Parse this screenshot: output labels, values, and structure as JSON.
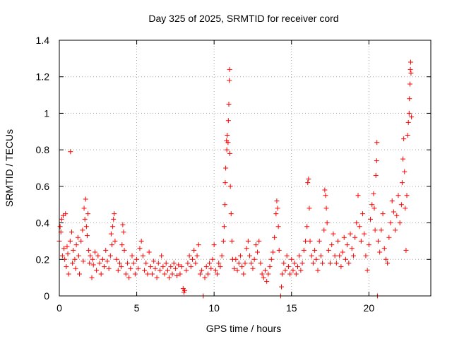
{
  "chart_data": {
    "type": "scatter",
    "title": "Day 325 of 2025, SRMTID for receiver cord",
    "xlabel": "GPS time / hours",
    "ylabel": "SRMTID / TECUs",
    "xlim": [
      0,
      24
    ],
    "ylim": [
      0,
      1.4
    ],
    "xticks": [
      0,
      5,
      10,
      15,
      20
    ],
    "yticks": [
      0,
      0.2,
      0.4,
      0.6,
      0.8,
      1,
      1.2,
      1.4
    ],
    "xtick_labels": [
      "0",
      "5",
      "10",
      "15",
      "20"
    ],
    "ytick_labels": [
      "0",
      "0.2",
      "0.4",
      "0.6",
      "0.8",
      "1",
      "1.2",
      "1.4"
    ],
    "grid": true,
    "marker": "+",
    "color": "#ff0000",
    "series": [
      {
        "name": "SRMTID",
        "points": [
          [
            0.0,
            0.3
          ],
          [
            0.05,
            0.38
          ],
          [
            0.1,
            0.35
          ],
          [
            0.15,
            0.42
          ],
          [
            0.2,
            0.22
          ],
          [
            0.25,
            0.44
          ],
          [
            0.3,
            0.26
          ],
          [
            0.35,
            0.2
          ],
          [
            0.4,
            0.45
          ],
          [
            0.45,
            0.16
          ],
          [
            0.5,
            0.27
          ],
          [
            0.55,
            0.23
          ],
          [
            0.6,
            0.12
          ],
          [
            0.7,
            0.3
          ],
          [
            0.72,
            0.79
          ],
          [
            0.8,
            0.35
          ],
          [
            0.85,
            0.18
          ],
          [
            0.9,
            0.25
          ],
          [
            1.0,
            0.2
          ],
          [
            1.05,
            0.15
          ],
          [
            1.1,
            0.28
          ],
          [
            1.2,
            0.32
          ],
          [
            1.25,
            0.22
          ],
          [
            1.3,
            0.12
          ],
          [
            1.4,
            0.3
          ],
          [
            1.5,
            0.36
          ],
          [
            1.55,
            0.19
          ],
          [
            1.6,
            0.48
          ],
          [
            1.65,
            0.42
          ],
          [
            1.7,
            0.53
          ],
          [
            1.75,
            0.38
          ],
          [
            1.8,
            0.33
          ],
          [
            1.85,
            0.45
          ],
          [
            1.9,
            0.25
          ],
          [
            1.95,
            0.18
          ],
          [
            2.0,
            0.22
          ],
          [
            2.1,
            0.1
          ],
          [
            2.15,
            0.2
          ],
          [
            2.2,
            0.17
          ],
          [
            2.3,
            0.24
          ],
          [
            2.4,
            0.14
          ],
          [
            2.5,
            0.22
          ],
          [
            2.6,
            0.18
          ],
          [
            2.7,
            0.12
          ],
          [
            2.8,
            0.2
          ],
          [
            2.9,
            0.16
          ],
          [
            3.0,
            0.25
          ],
          [
            3.1,
            0.19
          ],
          [
            3.2,
            0.15
          ],
          [
            3.3,
            0.22
          ],
          [
            3.35,
            0.34
          ],
          [
            3.4,
            0.28
          ],
          [
            3.45,
            0.38
          ],
          [
            3.5,
            0.42
          ],
          [
            3.55,
            0.45
          ],
          [
            3.6,
            0.3
          ],
          [
            3.7,
            0.2
          ],
          [
            3.8,
            0.14
          ],
          [
            3.9,
            0.18
          ],
          [
            4.0,
            0.16
          ],
          [
            4.05,
            0.28
          ],
          [
            4.1,
            0.39
          ],
          [
            4.15,
            0.35
          ],
          [
            4.2,
            0.25
          ],
          [
            4.3,
            0.12
          ],
          [
            4.4,
            0.18
          ],
          [
            4.5,
            0.1
          ],
          [
            4.6,
            0.15
          ],
          [
            4.7,
            0.22
          ],
          [
            4.8,
            0.18
          ],
          [
            4.9,
            0.12
          ],
          [
            5.0,
            0.2
          ],
          [
            5.1,
            0.15
          ],
          [
            5.2,
            0.26
          ],
          [
            5.3,
            0.3
          ],
          [
            5.4,
            0.22
          ],
          [
            5.5,
            0.14
          ],
          [
            5.6,
            0.18
          ],
          [
            5.7,
            0.12
          ],
          [
            5.8,
            0.24
          ],
          [
            5.9,
            0.16
          ],
          [
            6.0,
            0.12
          ],
          [
            6.1,
            0.19
          ],
          [
            6.2,
            0.15
          ],
          [
            6.3,
            0.1
          ],
          [
            6.4,
            0.18
          ],
          [
            6.5,
            0.14
          ],
          [
            6.6,
            0.22
          ],
          [
            6.7,
            0.16
          ],
          [
            6.8,
            0.12
          ],
          [
            6.9,
            0.18
          ],
          [
            7.0,
            0.14
          ],
          [
            7.1,
            0.1
          ],
          [
            7.2,
            0.16
          ],
          [
            7.3,
            0.12
          ],
          [
            7.4,
            0.18
          ],
          [
            7.5,
            0.15
          ],
          [
            7.6,
            0.11
          ],
          [
            7.7,
            0.17
          ],
          [
            7.8,
            0.12
          ],
          [
            7.9,
            0.16
          ],
          [
            8.0,
            0.04
          ],
          [
            8.05,
            0.02
          ],
          [
            8.1,
            0.03
          ],
          [
            8.2,
            0.14
          ],
          [
            8.3,
            0.18
          ],
          [
            8.4,
            0.22
          ],
          [
            8.5,
            0.16
          ],
          [
            8.6,
            0.2
          ],
          [
            8.7,
            0.25
          ],
          [
            8.8,
            0.18
          ],
          [
            8.9,
            0.22
          ],
          [
            9.0,
            0.28
          ],
          [
            9.1,
            0.12
          ],
          [
            9.2,
            0.14
          ],
          [
            9.3,
            0.0
          ],
          [
            9.4,
            0.1
          ],
          [
            9.5,
            0.16
          ],
          [
            9.6,
            0.12
          ],
          [
            9.7,
            0.18
          ],
          [
            9.8,
            0.15
          ],
          [
            9.9,
            0.2
          ],
          [
            10.0,
            0.28
          ],
          [
            10.1,
            0.14
          ],
          [
            10.2,
            0.12
          ],
          [
            10.3,
            0.18
          ],
          [
            10.4,
            0.16
          ],
          [
            10.5,
            0.22
          ],
          [
            10.6,
            0.3
          ],
          [
            10.65,
            0.38
          ],
          [
            10.7,
            0.5
          ],
          [
            10.72,
            0.62
          ],
          [
            10.75,
            0.7
          ],
          [
            10.8,
            0.85
          ],
          [
            10.82,
            0.8
          ],
          [
            10.85,
            0.88
          ],
          [
            10.9,
            0.84
          ],
          [
            10.92,
            0.96
          ],
          [
            10.95,
            1.05
          ],
          [
            10.98,
            1.18
          ],
          [
            11.0,
            1.24
          ],
          [
            11.02,
            0.78
          ],
          [
            11.05,
            0.6
          ],
          [
            11.1,
            0.45
          ],
          [
            11.15,
            0.3
          ],
          [
            11.2,
            0.2
          ],
          [
            11.3,
            0.15
          ],
          [
            11.4,
            0.2
          ],
          [
            11.5,
            0.14
          ],
          [
            11.6,
            0.18
          ],
          [
            11.7,
            0.22
          ],
          [
            11.8,
            0.16
          ],
          [
            11.9,
            0.12
          ],
          [
            12.0,
            0.18
          ],
          [
            12.1,
            0.26
          ],
          [
            12.2,
            0.3
          ],
          [
            12.3,
            0.22
          ],
          [
            12.4,
            0.18
          ],
          [
            12.5,
            0.15
          ],
          [
            12.6,
            0.2
          ],
          [
            12.7,
            0.28
          ],
          [
            12.8,
            0.24
          ],
          [
            12.9,
            0.3
          ],
          [
            13.0,
            0.18
          ],
          [
            13.1,
            0.12
          ],
          [
            13.2,
            0.1
          ],
          [
            13.3,
            0.14
          ],
          [
            13.4,
            0.08
          ],
          [
            13.5,
            0.12
          ],
          [
            13.6,
            0.16
          ],
          [
            13.7,
            0.2
          ],
          [
            13.8,
            0.24
          ],
          [
            13.9,
            0.32
          ],
          [
            14.0,
            0.45
          ],
          [
            14.05,
            0.52
          ],
          [
            14.1,
            0.48
          ],
          [
            14.15,
            0.38
          ],
          [
            14.2,
            0.25
          ],
          [
            14.3,
            0.0
          ],
          [
            14.35,
            0.05
          ],
          [
            14.4,
            0.12
          ],
          [
            14.5,
            0.18
          ],
          [
            14.6,
            0.14
          ],
          [
            14.7,
            0.22
          ],
          [
            14.8,
            0.16
          ],
          [
            14.9,
            0.12
          ],
          [
            15.0,
            0.2
          ],
          [
            15.1,
            0.14
          ],
          [
            15.2,
            0.18
          ],
          [
            15.3,
            0.12
          ],
          [
            15.4,
            0.16
          ],
          [
            15.5,
            0.22
          ],
          [
            15.6,
            0.14
          ],
          [
            15.7,
            0.18
          ],
          [
            15.8,
            0.25
          ],
          [
            15.9,
            0.3
          ],
          [
            16.0,
            0.38
          ],
          [
            16.05,
            0.62
          ],
          [
            16.1,
            0.64
          ],
          [
            16.15,
            0.48
          ],
          [
            16.2,
            0.3
          ],
          [
            16.3,
            0.22
          ],
          [
            16.4,
            0.18
          ],
          [
            16.5,
            0.25
          ],
          [
            16.6,
            0.2
          ],
          [
            16.7,
            0.14
          ],
          [
            16.8,
            0.3
          ],
          [
            16.9,
            0.22
          ],
          [
            17.0,
            0.18
          ],
          [
            17.1,
            0.36
          ],
          [
            17.15,
            0.58
          ],
          [
            17.2,
            0.55
          ],
          [
            17.25,
            0.48
          ],
          [
            17.3,
            0.4
          ],
          [
            17.4,
            0.25
          ],
          [
            17.5,
            0.18
          ],
          [
            17.6,
            0.28
          ],
          [
            17.7,
            0.34
          ],
          [
            17.8,
            0.22
          ],
          [
            17.9,
            0.18
          ],
          [
            18.0,
            0.3
          ],
          [
            18.1,
            0.22
          ],
          [
            18.2,
            0.16
          ],
          [
            18.3,
            0.24
          ],
          [
            18.4,
            0.32
          ],
          [
            18.5,
            0.2
          ],
          [
            18.6,
            0.28
          ],
          [
            18.7,
            0.18
          ],
          [
            18.8,
            0.34
          ],
          [
            18.9,
            0.26
          ],
          [
            19.0,
            0.22
          ],
          [
            19.1,
            0.32
          ],
          [
            19.2,
            0.4
          ],
          [
            19.3,
            0.55
          ],
          [
            19.4,
            0.38
          ],
          [
            19.5,
            0.3
          ],
          [
            19.6,
            0.45
          ],
          [
            19.7,
            0.34
          ],
          [
            19.8,
            0.22
          ],
          [
            19.9,
            0.14
          ],
          [
            20.0,
            0.28
          ],
          [
            20.1,
            0.42
          ],
          [
            20.2,
            0.5
          ],
          [
            20.3,
            0.56
          ],
          [
            20.35,
            0.48
          ],
          [
            20.4,
            0.36
          ],
          [
            20.45,
            0.66
          ],
          [
            20.5,
            0.74
          ],
          [
            20.52,
            0.84
          ],
          [
            20.55,
            0.0
          ],
          [
            20.6,
            0.3
          ],
          [
            20.7,
            0.24
          ],
          [
            20.8,
            0.36
          ],
          [
            20.9,
            0.45
          ],
          [
            21.0,
            0.26
          ],
          [
            21.1,
            0.2
          ],
          [
            21.2,
            0.18
          ],
          [
            21.3,
            0.32
          ],
          [
            21.4,
            0.4
          ],
          [
            21.5,
            0.52
          ],
          [
            21.6,
            0.46
          ],
          [
            21.7,
            0.36
          ],
          [
            21.8,
            0.44
          ],
          [
            21.9,
            0.55
          ],
          [
            22.0,
            0.4
          ],
          [
            22.1,
            0.5
          ],
          [
            22.15,
            0.62
          ],
          [
            22.2,
            0.75
          ],
          [
            22.25,
            0.86
          ],
          [
            22.3,
            0.68
          ],
          [
            22.35,
            0.48
          ],
          [
            22.4,
            0.25
          ],
          [
            22.45,
            0.55
          ],
          [
            22.5,
            0.88
          ],
          [
            22.55,
            0.95
          ],
          [
            22.6,
            1.0
          ],
          [
            22.62,
            1.08
          ],
          [
            22.65,
            1.16
          ],
          [
            22.68,
            1.24
          ],
          [
            22.7,
            1.28
          ],
          [
            22.72,
            1.22
          ],
          [
            22.75,
            0.98
          ]
        ]
      }
    ]
  }
}
